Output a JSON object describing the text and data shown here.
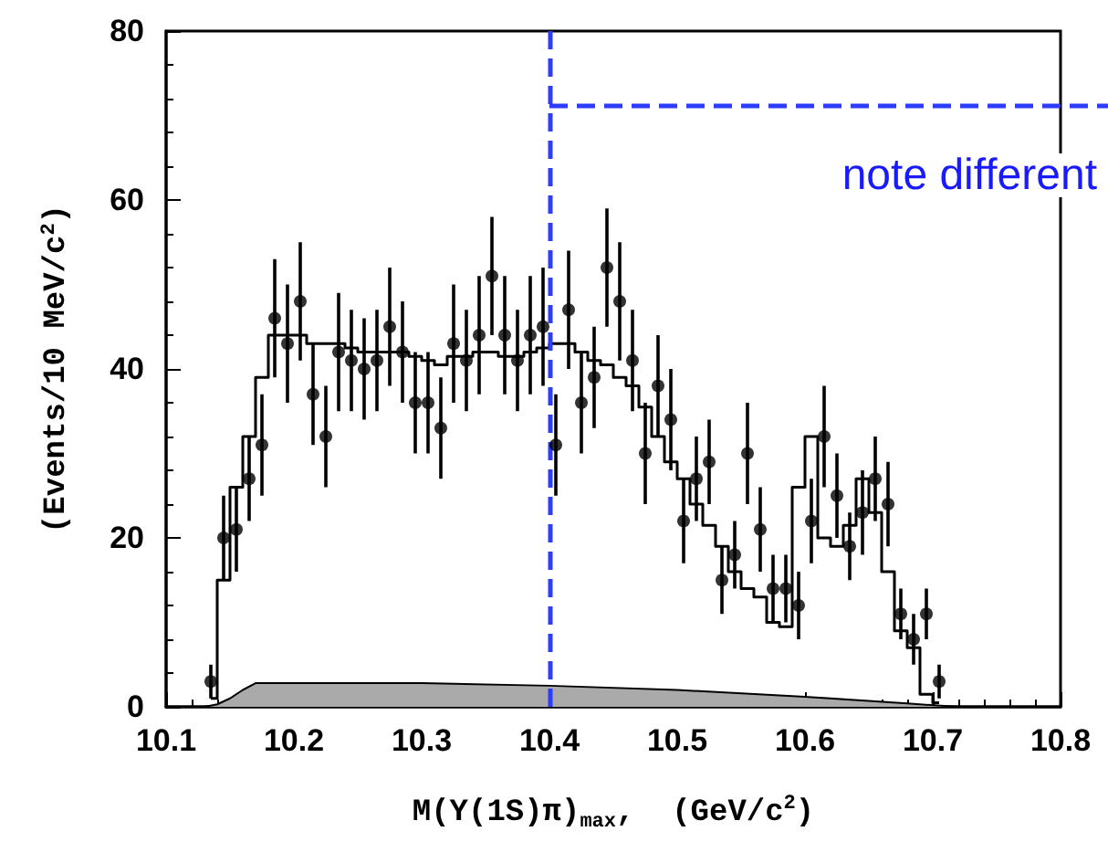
{
  "chart_data": {
    "type": "scatter",
    "xlabel": "M(Υ(1S)π)$_{max}$,  (GeV/c$^{2}$)",
    "ylabel": "(Events/10 MeV/c$^{2}$)",
    "xlim": [
      10.1,
      10.8
    ],
    "xticks": [
      10.1,
      10.2,
      10.3,
      10.4,
      10.5,
      10.6,
      10.7,
      10.8
    ],
    "ylim": [
      0,
      80
    ],
    "yticks": [
      0,
      20,
      40,
      60,
      80
    ],
    "grid": false,
    "annotations": [
      "note different"
    ],
    "ref_lines": [
      {
        "axis": "x",
        "value": 10.4,
        "color": "#2d3cff",
        "line_style": "dashed"
      }
    ],
    "series": [
      {
        "type": "area",
        "color": "#aaaaaa",
        "x": [
          10.13,
          10.14,
          10.15,
          10.16,
          10.17,
          10.3,
          10.4,
          10.5,
          10.6,
          10.68,
          10.72
        ],
        "values": [
          0,
          0.3,
          1,
          2,
          2.8,
          2.8,
          2.5,
          2,
          1.2,
          0.4,
          0
        ]
      },
      {
        "type": "step",
        "color": "#000000",
        "x": [
          10.135,
          10.145,
          10.155,
          10.165,
          10.175,
          10.185,
          10.195,
          10.205,
          10.215,
          10.225,
          10.235,
          10.245,
          10.255,
          10.265,
          10.275,
          10.285,
          10.295,
          10.305,
          10.315,
          10.325,
          10.335,
          10.345,
          10.355,
          10.365,
          10.375,
          10.385,
          10.395,
          10.405,
          10.415,
          10.425,
          10.435,
          10.445,
          10.455,
          10.465,
          10.475,
          10.485,
          10.495,
          10.505,
          10.515,
          10.525,
          10.535,
          10.545,
          10.555,
          10.565,
          10.575,
          10.585,
          10.595,
          10.605,
          10.615,
          10.625,
          10.635,
          10.645,
          10.655,
          10.665,
          10.675,
          10.685,
          10.695,
          10.705
        ],
        "values": [
          1,
          15,
          26,
          32,
          39,
          44,
          44,
          44,
          43,
          43,
          43,
          42.5,
          42,
          42,
          42,
          42,
          41.5,
          41,
          40.5,
          41.5,
          41.5,
          42,
          42,
          41.5,
          41.5,
          42,
          42.5,
          43,
          43,
          42,
          41,
          40.5,
          39,
          38,
          35.5,
          32,
          29,
          27,
          24,
          21.5,
          19,
          16,
          14,
          13,
          10,
          9.5,
          26,
          32,
          20,
          19,
          21.5,
          27,
          23,
          16,
          9,
          7,
          1.5,
          0.5
        ]
      },
      {
        "marker": "circle",
        "color": "#000000",
        "x": [
          10.135,
          10.145,
          10.155,
          10.165,
          10.175,
          10.185,
          10.195,
          10.205,
          10.215,
          10.225,
          10.235,
          10.245,
          10.255,
          10.265,
          10.275,
          10.285,
          10.295,
          10.305,
          10.315,
          10.325,
          10.335,
          10.345,
          10.355,
          10.365,
          10.375,
          10.385,
          10.395,
          10.405,
          10.415,
          10.425,
          10.435,
          10.445,
          10.455,
          10.465,
          10.475,
          10.485,
          10.495,
          10.505,
          10.515,
          10.525,
          10.535,
          10.545,
          10.555,
          10.565,
          10.575,
          10.585,
          10.595,
          10.605,
          10.615,
          10.625,
          10.635,
          10.645,
          10.655,
          10.665,
          10.675,
          10.685,
          10.695,
          10.705
        ],
        "values": [
          3,
          20,
          21,
          27,
          31,
          46,
          43,
          48,
          37,
          32,
          42,
          41,
          40,
          41,
          45,
          42,
          36,
          36,
          33,
          43,
          41,
          44,
          51,
          44,
          41,
          44,
          45,
          31,
          47,
          36,
          39,
          52,
          48,
          41,
          30,
          38,
          34,
          22,
          27,
          29,
          15,
          18,
          30,
          21,
          14,
          14,
          12,
          22,
          32,
          25,
          19,
          23,
          27,
          24,
          11,
          8,
          11,
          3
        ],
        "errors": [
          2,
          5,
          5,
          5,
          6,
          7,
          7,
          7,
          6,
          6,
          7,
          6,
          6,
          6,
          7,
          6,
          6,
          6,
          6,
          7,
          6,
          7,
          7,
          7,
          6,
          7,
          7,
          6,
          7,
          6,
          6,
          7,
          7,
          6,
          6,
          6,
          6,
          5,
          5,
          5,
          4,
          4,
          6,
          5,
          4,
          4,
          4,
          5,
          6,
          5,
          4,
          5,
          5,
          5,
          3,
          3,
          3,
          2
        ]
      }
    ]
  }
}
